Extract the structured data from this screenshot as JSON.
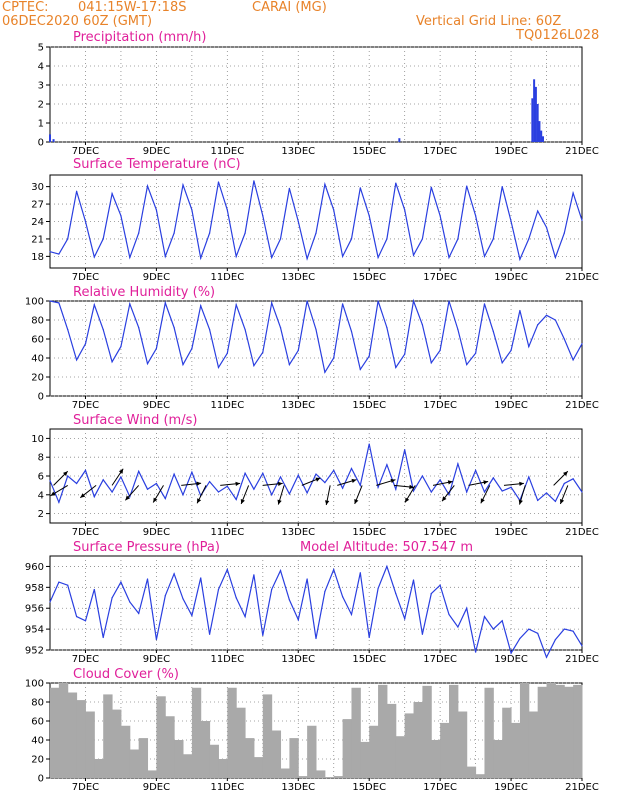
{
  "header": {
    "source": "CPTEC:",
    "location": "041:15W-17:18S",
    "station": "CARAI (MG)",
    "run": "06DEC2020 60Z (GMT)",
    "grid_note": "Vertical Grid Line: 60Z",
    "code": "TQ0126L028"
  },
  "x_ticks": [
    "7DEC",
    "9DEC",
    "11DEC",
    "13DEC",
    "15DEC",
    "17DEC",
    "19DEC",
    "21DEC"
  ],
  "colors": {
    "series": "#2a3fe0",
    "cloud": "#a9a9a9",
    "title": "#e0209a",
    "header": "#e8832a"
  },
  "chart_data": [
    {
      "id": "precip",
      "type": "bar",
      "title": "Precipitation (mm/h)",
      "ylim": [
        0,
        5
      ],
      "yticks": [
        0,
        1,
        2,
        3,
        4,
        5
      ],
      "x": [
        6.0,
        6.1,
        15.85,
        19.6,
        19.65,
        19.7,
        19.75,
        19.8,
        19.85,
        19.9
      ],
      "values": [
        0.4,
        0.15,
        0.2,
        2.3,
        3.3,
        2.9,
        2.0,
        1.1,
        0.6,
        0.3
      ]
    },
    {
      "id": "temp",
      "type": "line",
      "title": "Surface Temperature (nC)",
      "ylim": [
        16,
        32
      ],
      "yticks": [
        18,
        21,
        24,
        27,
        30
      ],
      "x": [
        6.0,
        6.25,
        6.5,
        6.75,
        7.0,
        7.25,
        7.5,
        7.75,
        8.0,
        8.25,
        8.5,
        8.75,
        9.0,
        9.25,
        9.5,
        9.75,
        10.0,
        10.25,
        10.5,
        10.75,
        11.0,
        11.25,
        11.5,
        11.75,
        12.0,
        12.25,
        12.5,
        12.75,
        13.0,
        13.25,
        13.5,
        13.75,
        14.0,
        14.25,
        14.5,
        14.75,
        15.0,
        15.25,
        15.5,
        15.75,
        16.0,
        16.25,
        16.5,
        16.75,
        17.0,
        17.25,
        17.5,
        17.75,
        18.0,
        18.25,
        18.5,
        18.75,
        19.0,
        19.25,
        19.5,
        19.75,
        20.0,
        20.25,
        20.5,
        20.75,
        21.0
      ],
      "values": [
        18.8,
        18.4,
        21,
        29.2,
        24,
        17.9,
        21,
        28.8,
        25,
        17.8,
        22,
        30.1,
        26,
        18,
        22,
        30.3,
        26,
        17.7,
        22,
        30.8,
        26,
        18,
        22,
        31.0,
        25,
        17.8,
        21,
        29.7,
        24,
        17.6,
        22,
        30.4,
        26,
        18,
        21,
        29.8,
        25,
        17.8,
        21,
        30.6,
        26,
        18.2,
        21,
        29.9,
        25,
        17.8,
        21,
        30.1,
        25,
        18,
        21,
        30.0,
        24,
        17.5,
        21,
        25.8,
        23,
        17.8,
        22,
        28.9,
        24.2
      ]
    },
    {
      "id": "rh",
      "type": "line",
      "title": "Relative Humidity (%)",
      "ylim": [
        0,
        100
      ],
      "yticks": [
        0,
        20,
        40,
        60,
        80,
        100
      ],
      "x": [
        6.0,
        6.25,
        6.5,
        6.75,
        7.0,
        7.25,
        7.5,
        7.75,
        8.0,
        8.25,
        8.5,
        8.75,
        9.0,
        9.25,
        9.5,
        9.75,
        10.0,
        10.25,
        10.5,
        10.75,
        11.0,
        11.25,
        11.5,
        11.75,
        12.0,
        12.25,
        12.5,
        12.75,
        13.0,
        13.25,
        13.5,
        13.75,
        14.0,
        14.25,
        14.5,
        14.75,
        15.0,
        15.25,
        15.5,
        15.75,
        16.0,
        16.25,
        16.5,
        16.75,
        17.0,
        17.25,
        17.5,
        17.75,
        18.0,
        18.25,
        18.5,
        18.75,
        19.0,
        19.25,
        19.5,
        19.75,
        20.0,
        20.25,
        20.5,
        20.75,
        21.0
      ],
      "values": [
        100,
        98,
        70,
        38,
        55,
        96,
        70,
        36,
        52,
        97,
        72,
        34,
        50,
        98,
        72,
        33,
        50,
        95,
        70,
        30,
        45,
        96,
        70,
        32,
        46,
        98,
        72,
        33,
        48,
        100,
        70,
        25,
        40,
        97,
        68,
        28,
        42,
        100,
        72,
        30,
        44,
        100,
        75,
        35,
        48,
        100,
        70,
        33,
        45,
        97,
        68,
        35,
        48,
        90,
        52,
        75,
        85,
        80,
        60,
        38,
        55
      ]
    },
    {
      "id": "wind",
      "type": "line",
      "title": "Surface Wind (m/s)",
      "ylim": [
        1,
        11
      ],
      "yticks": [
        2,
        4,
        6,
        8,
        10
      ],
      "x": [
        6.0,
        6.25,
        6.5,
        6.75,
        7.0,
        7.25,
        7.5,
        7.75,
        8.0,
        8.25,
        8.5,
        8.75,
        9.0,
        9.25,
        9.5,
        9.75,
        10.0,
        10.25,
        10.5,
        10.75,
        11.0,
        11.25,
        11.5,
        11.75,
        12.0,
        12.25,
        12.5,
        12.75,
        13.0,
        13.25,
        13.5,
        13.75,
        14.0,
        14.25,
        14.5,
        14.75,
        15.0,
        15.25,
        15.5,
        15.75,
        16.0,
        16.25,
        16.5,
        16.75,
        17.0,
        17.25,
        17.5,
        17.75,
        18.0,
        18.25,
        18.5,
        18.75,
        19.0,
        19.25,
        19.5,
        19.75,
        20.0,
        20.25,
        20.5,
        20.75,
        21.0
      ],
      "values": [
        5.5,
        3.2,
        6.0,
        5.2,
        6.6,
        3.8,
        5.6,
        4.3,
        5.9,
        3.8,
        6.5,
        4.6,
        5.2,
        3.6,
        6.2,
        4.0,
        6.4,
        3.9,
        5.4,
        4.3,
        4.9,
        3.5,
        6.3,
        4.6,
        6.3,
        4.0,
        5.9,
        4.1,
        6.1,
        4.2,
        6.2,
        5.3,
        6.6,
        4.7,
        6.8,
        5.0,
        9.4,
        4.8,
        7.2,
        4.6,
        8.8,
        4.4,
        6.0,
        4.3,
        5.6,
        4.0,
        7.3,
        4.3,
        6.6,
        4.3,
        5.8,
        4.4,
        4.8,
        3.4,
        5.9,
        3.4,
        4.2,
        3.3,
        5.2,
        5.7,
        4.3
      ],
      "arrows": [
        {
          "x": 6.1,
          "u": 1,
          "v": 1
        },
        {
          "x": 6.5,
          "u": -1,
          "v": -0.6
        },
        {
          "x": 7.3,
          "u": -0.9,
          "v": -0.7
        },
        {
          "x": 7.75,
          "u": 0.6,
          "v": 0.9
        },
        {
          "x": 8.5,
          "u": -0.8,
          "v": -0.9
        },
        {
          "x": 9.2,
          "u": -0.6,
          "v": -1
        },
        {
          "x": 9.7,
          "u": 0.9,
          "v": 0.1
        },
        {
          "x": 10.4,
          "u": -0.5,
          "v": -1
        },
        {
          "x": 10.8,
          "u": 1,
          "v": 0.1
        },
        {
          "x": 11.6,
          "u": -0.4,
          "v": -1
        },
        {
          "x": 12.0,
          "u": 1,
          "v": 0.1
        },
        {
          "x": 12.6,
          "u": -0.3,
          "v": -1
        },
        {
          "x": 13.1,
          "u": 1,
          "v": 0.4
        },
        {
          "x": 13.9,
          "u": -0.2,
          "v": -1
        },
        {
          "x": 14.1,
          "u": 1,
          "v": 0.3
        },
        {
          "x": 14.8,
          "u": -0.4,
          "v": -1
        },
        {
          "x": 15.2,
          "u": 1,
          "v": 0.3
        },
        {
          "x": 15.7,
          "u": 1,
          "v": -0.1
        },
        {
          "x": 16.3,
          "u": -0.6,
          "v": -1
        },
        {
          "x": 16.8,
          "u": 1,
          "v": 0.2
        },
        {
          "x": 17.4,
          "u": -0.7,
          "v": -0.9
        },
        {
          "x": 17.8,
          "u": 1,
          "v": 0.2
        },
        {
          "x": 18.4,
          "u": -0.5,
          "v": -1
        },
        {
          "x": 18.8,
          "u": 1,
          "v": 0.1
        },
        {
          "x": 19.4,
          "u": -0.3,
          "v": -1
        },
        {
          "x": 20.2,
          "u": 0.6,
          "v": 0.6
        },
        {
          "x": 20.6,
          "u": -0.4,
          "v": -1
        }
      ]
    },
    {
      "id": "pres",
      "type": "line",
      "title": "Surface Pressure (hPa)",
      "annotation": "Model Altitude: 507.547 m",
      "ylim": [
        952,
        961
      ],
      "yticks": [
        952,
        954,
        956,
        958,
        960
      ],
      "x": [
        6.0,
        6.25,
        6.5,
        6.75,
        7.0,
        7.25,
        7.5,
        7.75,
        8.0,
        8.25,
        8.5,
        8.75,
        9.0,
        9.25,
        9.5,
        9.75,
        10.0,
        10.25,
        10.5,
        10.75,
        11.0,
        11.25,
        11.5,
        11.75,
        12.0,
        12.25,
        12.5,
        12.75,
        13.0,
        13.25,
        13.5,
        13.75,
        14.0,
        14.25,
        14.5,
        14.75,
        15.0,
        15.25,
        15.5,
        15.75,
        16.0,
        16.25,
        16.5,
        16.75,
        17.0,
        17.25,
        17.5,
        17.75,
        18.0,
        18.25,
        18.5,
        18.75,
        19.0,
        19.25,
        19.5,
        19.75,
        20.0,
        20.25,
        20.5,
        20.75,
        21.0
      ],
      "values": [
        956.6,
        958.5,
        958.2,
        955.2,
        954.8,
        957.8,
        953.2,
        957.0,
        958.5,
        956.6,
        955.5,
        958.8,
        953.0,
        957.2,
        959.3,
        956.9,
        955.3,
        958.9,
        953.5,
        957.8,
        959.7,
        957.0,
        955.2,
        959.2,
        953.4,
        957.8,
        959.6,
        956.8,
        954.9,
        958.8,
        953.1,
        957.6,
        959.7,
        957.1,
        955.4,
        959.4,
        953.2,
        957.9,
        960.0,
        957.4,
        955.0,
        958.7,
        953.5,
        957.4,
        958.2,
        955.4,
        954.2,
        956.0,
        951.8,
        955.2,
        954.0,
        954.8,
        951.7,
        953.1,
        954.0,
        953.6,
        951.3,
        953.0,
        954.0,
        953.8,
        952.4
      ]
    },
    {
      "id": "cloud",
      "type": "area",
      "title": "Cloud Cover (%)",
      "ylim": [
        0,
        100
      ],
      "yticks": [
        0,
        20,
        40,
        60,
        80,
        100
      ],
      "x": [
        6.0,
        6.25,
        6.5,
        6.75,
        7.0,
        7.25,
        7.5,
        7.75,
        8.0,
        8.25,
        8.5,
        8.75,
        9.0,
        9.25,
        9.5,
        9.75,
        10.0,
        10.25,
        10.5,
        10.75,
        11.0,
        11.25,
        11.5,
        11.75,
        12.0,
        12.25,
        12.5,
        12.75,
        13.0,
        13.25,
        13.5,
        13.75,
        14.0,
        14.25,
        14.5,
        14.75,
        15.0,
        15.25,
        15.5,
        15.75,
        16.0,
        16.25,
        16.5,
        16.75,
        17.0,
        17.25,
        17.5,
        17.75,
        18.0,
        18.25,
        18.5,
        18.75,
        19.0,
        19.25,
        19.5,
        19.75,
        20.0,
        20.25,
        20.5,
        20.75,
        21.0
      ],
      "values": [
        95,
        100,
        90,
        82,
        70,
        20,
        88,
        72,
        55,
        30,
        42,
        8,
        86,
        65,
        40,
        25,
        95,
        60,
        35,
        20,
        95,
        74,
        42,
        22,
        88,
        50,
        10,
        42,
        2,
        55,
        8,
        1,
        2,
        62,
        95,
        38,
        55,
        98,
        78,
        44,
        68,
        80,
        97,
        40,
        58,
        98,
        70,
        12,
        4,
        95,
        40,
        74,
        58,
        100,
        70,
        96,
        100,
        98,
        96,
        98,
        100
      ]
    }
  ]
}
